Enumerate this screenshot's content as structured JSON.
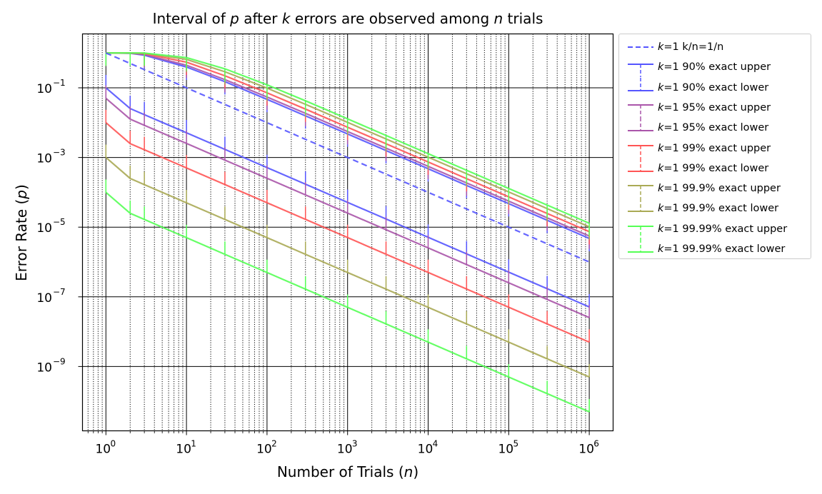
{
  "title_text": "Interval of p after k errors are observed among n trials",
  "title_parts": {
    "a": "Interval of ",
    "p": "p",
    "b": " after ",
    "k": "k",
    "c": " errors are observed among ",
    "n": "n",
    "d": " trials"
  },
  "xlabel_parts": {
    "a": "Number of Trials (",
    "n": "n",
    "b": ")"
  },
  "ylabel_parts": {
    "a": "Error Rate (",
    "p": "p",
    "b": ")"
  },
  "legend": [
    {
      "k": "k",
      "text": "=1 k/n=1/n",
      "color": "#5555ff",
      "style": "dashed"
    },
    {
      "k": "k",
      "text": "=1 90% exact upper",
      "color": "#5555ff",
      "style": "upper"
    },
    {
      "k": "k",
      "text": "=1 90% exact lower",
      "color": "#5555ff",
      "style": "lower"
    },
    {
      "k": "k",
      "text": "=1 95% exact upper",
      "color": "#aa55aa",
      "style": "upper"
    },
    {
      "k": "k",
      "text": "=1 95% exact lower",
      "color": "#aa55aa",
      "style": "lower"
    },
    {
      "k": "k",
      "text": "=1 99% exact upper",
      "color": "#ff5555",
      "style": "upper"
    },
    {
      "k": "k",
      "text": "=1 99% exact lower",
      "color": "#ff5555",
      "style": "lower"
    },
    {
      "k": "k",
      "text": "=1 99.9% exact upper",
      "color": "#aaaa55",
      "style": "upper"
    },
    {
      "k": "k",
      "text": "=1 99.9% exact lower",
      "color": "#aaaa55",
      "style": "lower"
    },
    {
      "k": "k",
      "text": "=1 99.99% exact upper",
      "color": "#55ff55",
      "style": "upper"
    },
    {
      "k": "k",
      "text": "=1 99.99% exact lower",
      "color": "#55ff55",
      "style": "lower"
    }
  ],
  "chart_data": {
    "type": "line",
    "title": "Interval of p after k errors are observed among n trials",
    "xlabel": "Number of Trials (n)",
    "ylabel": "Error Rate (p)",
    "xscale": "log",
    "yscale": "log",
    "xlim": [
      0.5,
      2000000
    ],
    "ylim": [
      1.5e-11,
      3
    ],
    "xticks": [
      "10^0",
      "10^1",
      "10^2",
      "10^3",
      "10^4",
      "10^5",
      "10^6"
    ],
    "yticks": [
      "10^-1",
      "10^-3",
      "10^-5",
      "10^-7",
      "10^-9"
    ],
    "grid": {
      "major": "solid",
      "minor_x": "dotted"
    },
    "legend_position": "outside right, upper",
    "x": [
      1,
      2,
      3,
      10,
      30,
      100,
      300,
      1000,
      3000,
      10000,
      30000,
      100000,
      300000,
      1000000
    ],
    "series": [
      {
        "name": "k=1 k/n=1/n",
        "color": "#5555ff",
        "dash": true,
        "values": [
          1,
          0.5,
          0.3333,
          0.1,
          0.03333,
          0.01,
          0.003333,
          0.001,
          0.0003333,
          0.0001,
          3.333e-05,
          1e-05,
          3.333e-06,
          1e-06
        ]
      },
      {
        "name": "k=1 90% exact upper",
        "color": "#5555ff",
        "values": [
          1,
          0.9747,
          0.8647,
          0.3942,
          0.1497,
          0.0466,
          0.01574,
          0.004735,
          0.00158,
          0.0004744,
          0.0001581,
          4.744e-05,
          1.581e-05,
          4.744e-06
        ]
      },
      {
        "name": "k=1 90% exact lower",
        "color": "#5555ff",
        "values": [
          0.1,
          0.02532,
          0.01695,
          0.005116,
          0.001709,
          0.0005128,
          0.000171,
          5.13e-05,
          1.71e-05,
          5.129e-06,
          1.71e-06,
          5.129e-07,
          1.71e-07,
          5.129e-08
        ]
      },
      {
        "name": "k=1 95% exact upper",
        "color": "#aa55aa",
        "values": [
          1,
          0.9874,
          0.9057,
          0.445,
          0.1722,
          0.0545,
          0.01845,
          0.005558,
          0.001856,
          0.0005571,
          0.0001857,
          5.572e-05,
          1.857e-05,
          5.572e-06
        ]
      },
      {
        "name": "k=1 95% exact lower",
        "color": "#aa55aa",
        "values": [
          0.05,
          0.01258,
          0.008403,
          0.002529,
          0.0008441,
          0.0002532,
          8.439e-05,
          2.532e-05,
          8.44e-06,
          2.532e-06,
          8.44e-07,
          2.532e-07,
          8.44e-08,
          2.532e-08
        ]
      },
      {
        "name": "k=1 99% exact upper",
        "color": "#ff5555",
        "values": [
          1,
          0.9975,
          0.9586,
          0.5443,
          0.2217,
          0.072,
          0.02451,
          0.007404,
          0.002474,
          0.0007428,
          0.0002476,
          7.43e-05,
          2.477e-05,
          7.43e-06
        ]
      },
      {
        "name": "k=1 99% exact lower",
        "color": "#ff5555",
        "values": [
          0.01,
          0.002503,
          0.001671,
          0.0005011,
          0.0001671,
          5.013e-05,
          1.671e-05,
          5.013e-06,
          1.671e-06,
          5.013e-07,
          1.671e-07,
          5.013e-08,
          1.671e-08,
          5.013e-09
        ]
      },
      {
        "name": "k=1 99.9% exact upper",
        "color": "#aaaa55",
        "values": [
          1,
          0.99975,
          0.9874,
          0.6553,
          0.289,
          0.098,
          0.03365,
          0.01019,
          0.003406,
          0.001023,
          0.000341,
          0.0001023,
          3.41e-05,
          1.023e-05
        ]
      },
      {
        "name": "k=1 99.9% exact lower",
        "color": "#aaaa55",
        "values": [
          0.001,
          0.0002501,
          0.0001667,
          5.001e-05,
          1.667e-05,
          5.001e-06,
          1.667e-06,
          5.001e-07,
          1.667e-07,
          5.001e-08,
          1.667e-08,
          5.001e-09,
          1.667e-09,
          5.001e-10
        ]
      },
      {
        "name": "k=1 99.99% exact upper",
        "color": "#55ff55",
        "values": [
          1,
          0.99997,
          0.996,
          0.737,
          0.35,
          0.122,
          0.0423,
          0.01284,
          0.004295,
          0.00129,
          0.00043,
          0.000129,
          4.3e-05,
          1.29e-05
        ]
      },
      {
        "name": "k=1 99.99% exact lower",
        "color": "#55ff55",
        "values": [
          0.0001,
          2.5e-05,
          1.667e-05,
          5e-06,
          1.667e-06,
          5e-07,
          1.667e-07,
          5e-08,
          1.667e-08,
          5e-09,
          1.667e-09,
          5e-10,
          1.667e-10,
          5e-11
        ]
      }
    ]
  }
}
